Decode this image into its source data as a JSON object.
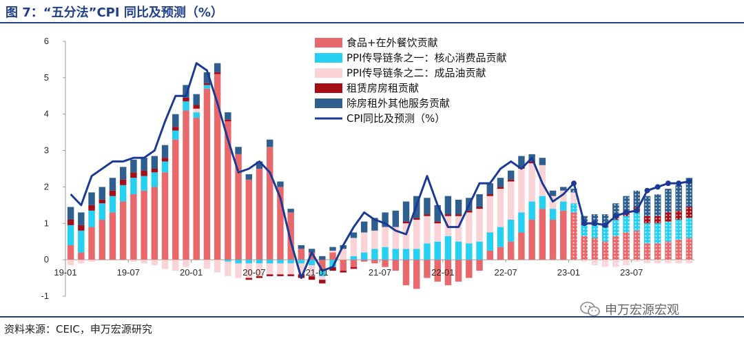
{
  "header": {
    "title": "图 7：“五分法”CPI 同比及预测（%）"
  },
  "footer": {
    "source": "资料来源：CEIC，申万宏源研究"
  },
  "watermark": {
    "text": "申万宏源宏观",
    "icon": "wechat-icon"
  },
  "colors": {
    "food": "#e8686b",
    "core": "#26d0f0",
    "oil": "#f9d3d6",
    "rent": "#a50e17",
    "services": "#2e5f8e",
    "line": "#1a3a94",
    "axis": "#9a9a9a"
  },
  "chart_data": {
    "type": "bar",
    "stacked": true,
    "title": "",
    "xlabel": "",
    "ylabel": "",
    "ylim": [
      -1,
      6
    ],
    "yticks": [
      -1,
      0,
      1,
      2,
      3,
      4,
      5,
      6
    ],
    "x_tick_labels": [
      {
        "index": 0,
        "label": "19-01"
      },
      {
        "index": 6,
        "label": "19-07"
      },
      {
        "index": 12,
        "label": "20-01"
      },
      {
        "index": 18,
        "label": "20-07"
      },
      {
        "index": 24,
        "label": "21-01"
      },
      {
        "index": 30,
        "label": "21-07"
      },
      {
        "index": 36,
        "label": "22-01"
      },
      {
        "index": 42,
        "label": "22-07"
      },
      {
        "index": 48,
        "label": "23-01"
      },
      {
        "index": 54,
        "label": "23-07"
      }
    ],
    "forecast_start_index": 48,
    "categories": [
      "19-01",
      "19-02",
      "19-03",
      "19-04",
      "19-05",
      "19-06",
      "19-07",
      "19-08",
      "19-09",
      "19-10",
      "19-11",
      "19-12",
      "20-01",
      "20-02",
      "20-03",
      "20-04",
      "20-05",
      "20-06",
      "20-07",
      "20-08",
      "20-09",
      "20-10",
      "20-11",
      "20-12",
      "21-01",
      "21-02",
      "21-03",
      "21-04",
      "21-05",
      "21-06",
      "21-07",
      "21-08",
      "21-09",
      "21-10",
      "21-11",
      "21-12",
      "22-01",
      "22-02",
      "22-03",
      "22-04",
      "22-05",
      "22-06",
      "22-07",
      "22-08",
      "22-09",
      "22-10",
      "22-11",
      "22-12",
      "23-01",
      "23-02",
      "23-03",
      "23-04",
      "23-05",
      "23-06",
      "23-07",
      "23-08",
      "23-09",
      "23-10",
      "23-11",
      "23-12"
    ],
    "legend_position": "top-center",
    "series": [
      {
        "name": "食品+在外餐饮贡献",
        "key": "food",
        "kind": "bar",
        "values": [
          0.4,
          0.2,
          0.9,
          1.1,
          1.3,
          1.6,
          1.8,
          1.9,
          2.0,
          2.4,
          3.3,
          4.1,
          3.9,
          4.7,
          5.1,
          3.8,
          2.9,
          2.2,
          2.5,
          3.1,
          2.0,
          1.3,
          0.3,
          0.2,
          -0.3,
          0.2,
          -0.3,
          -0.2,
          -0.05,
          -0.1,
          -0.2,
          -0.3,
          -0.7,
          -0.8,
          -0.5,
          -0.6,
          -0.7,
          -0.6,
          -0.5,
          -0.3,
          0.25,
          0.35,
          0.5,
          0.75,
          1.1,
          1.4,
          1.1,
          1.35,
          1.3,
          0.65,
          0.6,
          0.5,
          0.65,
          0.75,
          0.8,
          0.45,
          0.45,
          0.5,
          0.55,
          0.6
        ]
      },
      {
        "name": "PPI传导链条之一：核心消费品贡献",
        "key": "core",
        "kind": "bar",
        "values": [
          0.55,
          0.6,
          0.45,
          0.45,
          0.45,
          0.45,
          0.45,
          0.4,
          0.4,
          0.3,
          0.25,
          0.25,
          0.15,
          0.1,
          0.0,
          -0.05,
          -0.1,
          -0.1,
          -0.1,
          -0.1,
          -0.1,
          -0.1,
          -0.1,
          -0.15,
          -0.15,
          -0.2,
          0.0,
          0.1,
          0.2,
          0.3,
          0.35,
          0.3,
          0.3,
          0.3,
          0.45,
          0.5,
          0.65,
          0.5,
          0.45,
          0.5,
          0.5,
          0.55,
          0.6,
          0.55,
          0.5,
          0.35,
          0.3,
          0.25,
          0.25,
          0.3,
          0.35,
          0.4,
          0.45,
          0.45,
          0.5,
          0.55,
          0.55,
          0.55,
          0.55,
          0.55
        ]
      },
      {
        "name": "PPI传导链条之二：成品油贡献",
        "key": "oil",
        "kind": "bar",
        "values": [
          -0.15,
          -0.1,
          -0.05,
          0.0,
          0.0,
          0.0,
          -0.05,
          -0.1,
          -0.15,
          -0.25,
          -0.3,
          -0.2,
          0.1,
          -0.25,
          -0.35,
          -0.4,
          -0.4,
          -0.4,
          -0.35,
          -0.3,
          -0.3,
          -0.3,
          -0.3,
          -0.3,
          -0.1,
          0.05,
          0.3,
          0.5,
          0.55,
          0.5,
          0.55,
          0.6,
          0.7,
          0.8,
          0.75,
          0.5,
          0.55,
          0.7,
          0.85,
          0.9,
          1.0,
          1.05,
          1.05,
          1.2,
          1.05,
          0.85,
          0.35,
          0.3,
          0.3,
          -0.05,
          -0.15,
          -0.2,
          -0.2,
          -0.15,
          -0.05,
          -0.1,
          -0.1,
          -0.1,
          -0.1,
          -0.1
        ]
      },
      {
        "name": "租赁房房租贡献",
        "key": "rent",
        "kind": "bar",
        "values": [
          0.15,
          0.15,
          0.15,
          0.1,
          0.15,
          0.15,
          0.15,
          0.15,
          0.1,
          0.1,
          0.1,
          0.1,
          0.1,
          0.05,
          0.05,
          0.05,
          0.0,
          -0.05,
          -0.05,
          -0.05,
          -0.05,
          -0.05,
          -0.1,
          -0.1,
          -0.1,
          -0.1,
          -0.05,
          -0.05,
          0.0,
          0.0,
          0.0,
          0.0,
          0.05,
          0.05,
          0.05,
          0.05,
          0.05,
          0.05,
          0.05,
          0.05,
          0.05,
          0.05,
          0.05,
          0.05,
          0.05,
          0.0,
          0.0,
          0.0,
          0.0,
          0.05,
          0.05,
          0.05,
          0.1,
          0.15,
          0.15,
          0.2,
          0.2,
          0.25,
          0.25,
          0.3
        ]
      },
      {
        "name": "除房租外其他服务贡献",
        "key": "services",
        "kind": "bar",
        "values": [
          0.35,
          0.35,
          0.35,
          0.35,
          0.35,
          0.35,
          0.35,
          0.35,
          0.35,
          0.35,
          0.35,
          0.35,
          0.3,
          0.3,
          0.25,
          0.2,
          0.2,
          0.15,
          0.2,
          0.2,
          0.15,
          0.1,
          0.1,
          0.1,
          0.1,
          0.1,
          0.1,
          0.15,
          0.3,
          0.35,
          0.4,
          0.45,
          0.55,
          0.6,
          0.45,
          0.45,
          0.5,
          0.4,
          0.35,
          0.35,
          0.3,
          0.25,
          0.25,
          0.3,
          0.2,
          0.2,
          0.15,
          0.1,
          0.1,
          0.2,
          0.25,
          0.3,
          0.35,
          0.4,
          0.45,
          0.55,
          0.6,
          0.65,
          0.7,
          0.8
        ]
      },
      {
        "name": "CPI同比及预测（%）",
        "key": "line",
        "kind": "line",
        "values": [
          1.8,
          1.5,
          2.3,
          2.5,
          2.7,
          2.7,
          2.8,
          2.8,
          3.0,
          3.8,
          4.5,
          4.5,
          5.4,
          5.2,
          4.3,
          3.3,
          2.4,
          2.5,
          2.7,
          2.4,
          1.7,
          0.5,
          -0.5,
          0.2,
          -0.3,
          -0.2,
          0.4,
          0.9,
          1.3,
          1.1,
          1.0,
          0.8,
          0.7,
          1.5,
          2.3,
          1.5,
          0.9,
          0.9,
          1.5,
          2.1,
          2.1,
          2.5,
          2.7,
          2.5,
          2.8,
          2.1,
          1.6,
          1.8,
          2.1,
          1.0,
          1.0,
          0.95,
          1.2,
          1.3,
          1.35,
          1.9,
          2.0,
          2.1,
          2.1,
          2.15
        ]
      }
    ]
  }
}
